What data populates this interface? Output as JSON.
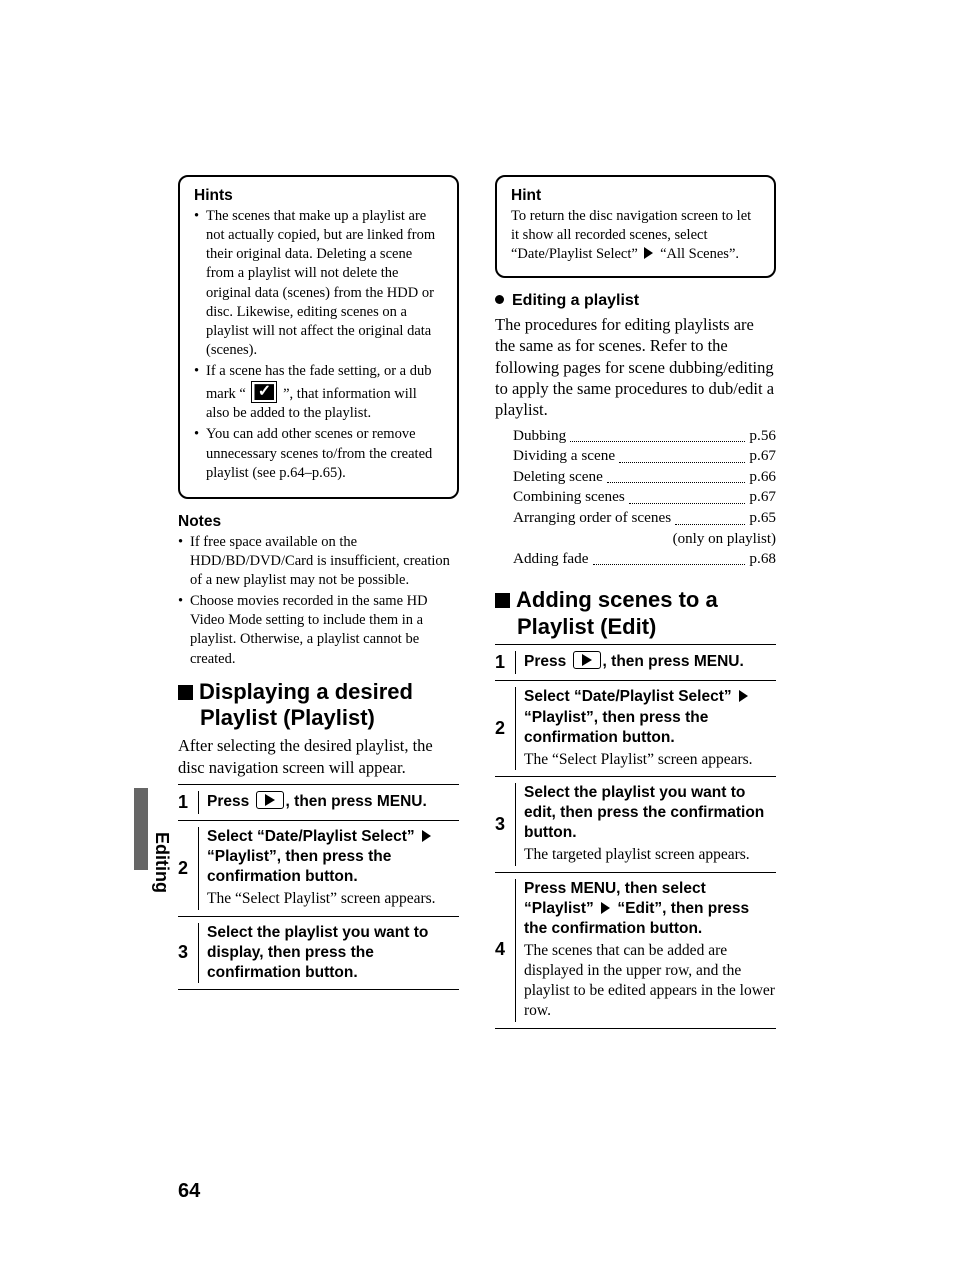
{
  "page_number": "64",
  "side_tab": "Editing",
  "left": {
    "hints": {
      "title": "Hints",
      "items": [
        "The scenes that make up a playlist are not actually copied, but are linked from their original data. Deleting a scene from a playlist will not delete the original data (scenes) from the HDD or disc. Likewise, editing scenes on a playlist will not affect the original data (scenes).",
        "__DUBMARK__",
        "You can add other scenes or remove unnecessary scenes to/from the created playlist (see p.64–p.65)."
      ],
      "dubmark_pre": "If a scene has the fade setting, or a dub mark “ ",
      "dubmark_post": " ”, that information will also be added to the playlist."
    },
    "notes": {
      "title": "Notes",
      "items": [
        "If free space available on the HDD/BD/DVD/Card is insufficient, creation of a new playlist may not be possible.",
        "Choose movies recorded in the same HD Video Mode setting to include them in a playlist. Otherwise, a playlist cannot be created."
      ]
    },
    "section": {
      "title": "Displaying a desired Playlist (Playlist)",
      "intro": "After selecting the desired playlist, the disc navigation screen will appear.",
      "steps": [
        {
          "n": "1",
          "bold_pre": "Press ",
          "play": true,
          "bold_post": ", then press MENU."
        },
        {
          "n": "2",
          "bold_pre": "Select “Date/Playlist Select” ",
          "triangle": true,
          "bold_post": " “Playlist”, then press the confirmation button.",
          "sub": "The “Select Playlist” screen appears."
        },
        {
          "n": "3",
          "bold_pre": "Select the playlist you want to display, then press the confirmation button."
        }
      ]
    }
  },
  "right": {
    "hint": {
      "title": "Hint",
      "pre": "To return the disc navigation screen to let it show all recorded scenes, select “Date/Playlist Select” ",
      "post": " “All Scenes”."
    },
    "editing": {
      "title": "Editing a playlist",
      "intro": "The procedures for editing playlists are the same as for scenes. Refer to the following pages for scene dubbing/editing to apply the same procedures to dub/edit a playlist.",
      "refs": [
        {
          "label": "Dubbing",
          "page": "p.56"
        },
        {
          "label": "Dividing a scene",
          "page": "p.67"
        },
        {
          "label": "Deleting scene",
          "page": "p.66"
        },
        {
          "label": "Combining scenes",
          "page": "p.67"
        },
        {
          "label": "Arranging order of scenes",
          "page": "p.65",
          "note": "(only on playlist)"
        },
        {
          "label": "Adding fade",
          "page": "p.68"
        }
      ]
    },
    "section": {
      "title": "Adding scenes to a Playlist (Edit)",
      "steps": [
        {
          "n": "1",
          "bold_pre": "Press ",
          "play": true,
          "bold_post": ", then press MENU."
        },
        {
          "n": "2",
          "bold_pre": "Select “Date/Playlist Select” ",
          "triangle": true,
          "bold_post": " “Playlist”, then press the confirmation button.",
          "sub": "The “Select Playlist” screen appears."
        },
        {
          "n": "3",
          "bold_pre": "Select the playlist you want to edit, then press the confirmation button.",
          "sub": "The targeted playlist screen appears."
        },
        {
          "n": "4",
          "bold_pre": "Press MENU, then select “Playlist” ",
          "triangle": true,
          "bold_post": " “Edit”, then press the confirmation button.",
          "sub": "The scenes that can be added are displayed in the upper row, and the playlist to be edited appears in the lower row."
        }
      ]
    }
  }
}
